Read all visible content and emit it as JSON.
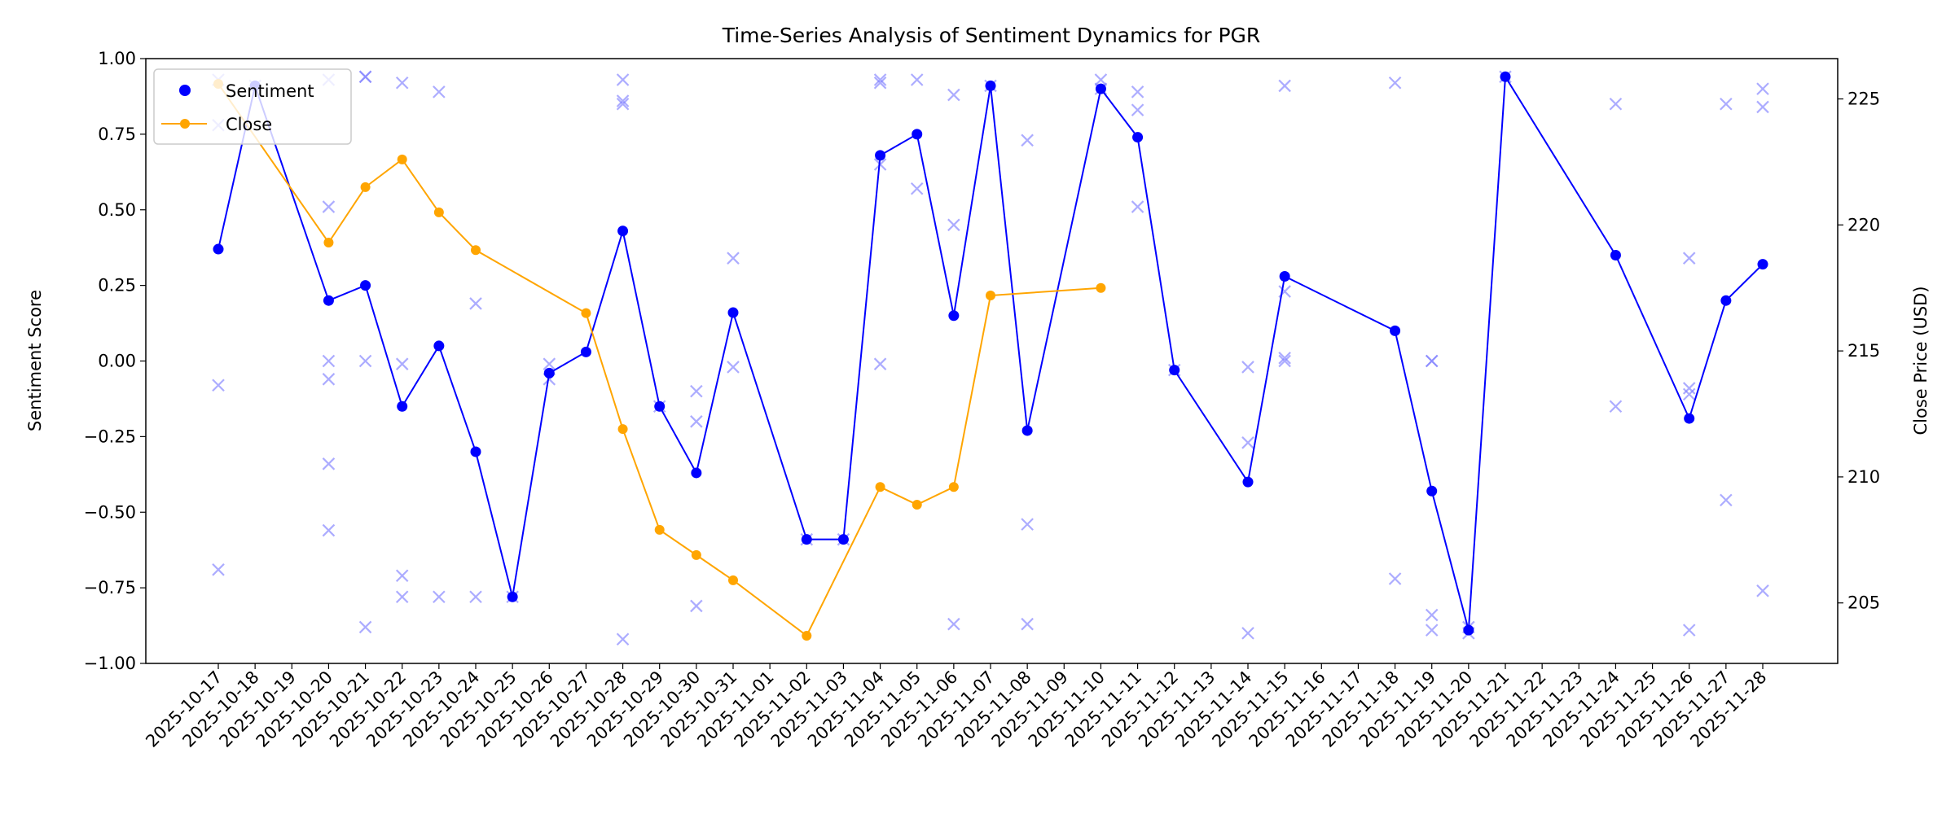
{
  "chart_data": {
    "type": "line",
    "title": "Time-Series Analysis of Sentiment Dynamics for PGR",
    "ylabel": "Sentiment Score",
    "y2label": "Close Price (USD)",
    "xlabel": "",
    "ylim": [
      -1.0,
      1.0
    ],
    "y2lim": [
      202.6,
      226.6
    ],
    "yticks": [
      "1.00",
      "0.75",
      "0.50",
      "0.25",
      "0.00",
      "−0.25",
      "−0.50",
      "−0.75",
      "−1.00"
    ],
    "y2ticks": [
      "205",
      "210",
      "215",
      "220",
      "225"
    ],
    "grid": false,
    "legend": {
      "position": "top-left",
      "entries": [
        "Sentiment",
        "Close"
      ]
    },
    "colors": {
      "sentiment": "#0000ff",
      "close": "#ffa500",
      "raw": "#8080ff"
    },
    "categories": [
      "2025-10-17",
      "2025-10-18",
      "2025-10-19",
      "2025-10-20",
      "2025-10-21",
      "2025-10-22",
      "2025-10-23",
      "2025-10-24",
      "2025-10-25",
      "2025-10-26",
      "2025-10-27",
      "2025-10-28",
      "2025-10-29",
      "2025-10-30",
      "2025-10-31",
      "2025-11-01",
      "2025-11-02",
      "2025-11-03",
      "2025-11-04",
      "2025-11-05",
      "2025-11-06",
      "2025-11-07",
      "2025-11-08",
      "2025-11-09",
      "2025-11-10",
      "2025-11-11",
      "2025-11-12",
      "2025-11-13",
      "2025-11-14",
      "2025-11-15",
      "2025-11-16",
      "2025-11-17",
      "2025-11-18",
      "2025-11-19",
      "2025-11-20",
      "2025-11-21",
      "2025-11-22",
      "2025-11-23",
      "2025-11-24",
      "2025-11-25",
      "2025-11-26",
      "2025-11-27",
      "2025-11-28"
    ],
    "series": [
      {
        "name": "Sentiment",
        "axis": "left",
        "points": [
          [
            "2025-10-17",
            0.37
          ],
          [
            "2025-10-18",
            0.91
          ],
          [
            "2025-10-20",
            0.2
          ],
          [
            "2025-10-21",
            0.25
          ],
          [
            "2025-10-22",
            -0.15
          ],
          [
            "2025-10-23",
            0.05
          ],
          [
            "2025-10-24",
            -0.3
          ],
          [
            "2025-10-25",
            -0.78
          ],
          [
            "2025-10-26",
            -0.04
          ],
          [
            "2025-10-27",
            0.03
          ],
          [
            "2025-10-28",
            0.43
          ],
          [
            "2025-10-29",
            -0.15
          ],
          [
            "2025-10-30",
            -0.37
          ],
          [
            "2025-10-31",
            0.16
          ],
          [
            "2025-11-02",
            -0.59
          ],
          [
            "2025-11-03",
            -0.59
          ],
          [
            "2025-11-04",
            0.68
          ],
          [
            "2025-11-05",
            0.75
          ],
          [
            "2025-11-06",
            0.15
          ],
          [
            "2025-11-07",
            0.91
          ],
          [
            "2025-11-08",
            -0.23
          ],
          [
            "2025-11-10",
            0.9
          ],
          [
            "2025-11-11",
            0.74
          ],
          [
            "2025-11-12",
            -0.03
          ],
          [
            "2025-11-14",
            -0.4
          ],
          [
            "2025-11-15",
            0.28
          ],
          [
            "2025-11-18",
            0.1
          ],
          [
            "2025-11-19",
            -0.43
          ],
          [
            "2025-11-20",
            -0.89
          ],
          [
            "2025-11-21",
            0.94
          ],
          [
            "2025-11-24",
            0.35
          ],
          [
            "2025-11-26",
            -0.19
          ],
          [
            "2025-11-27",
            0.2
          ],
          [
            "2025-11-28",
            0.32
          ]
        ]
      },
      {
        "name": "Close",
        "axis": "right",
        "points": [
          [
            "2025-10-17",
            225.6
          ],
          [
            "2025-10-20",
            219.3
          ],
          [
            "2025-10-21",
            221.5
          ],
          [
            "2025-10-22",
            222.6
          ],
          [
            "2025-10-23",
            220.5
          ],
          [
            "2025-10-24",
            219.0
          ],
          [
            "2025-10-27",
            216.5
          ],
          [
            "2025-10-28",
            211.9
          ],
          [
            "2025-10-29",
            207.9
          ],
          [
            "2025-10-30",
            206.9
          ],
          [
            "2025-10-31",
            205.9
          ],
          [
            "2025-11-02",
            203.7
          ],
          [
            "2025-11-04",
            209.6
          ],
          [
            "2025-11-05",
            208.9
          ],
          [
            "2025-11-06",
            209.6
          ],
          [
            "2025-11-07",
            217.2
          ],
          [
            "2025-11-10",
            217.5
          ]
        ]
      },
      {
        "axis": "left",
        "marker": "x",
        "points": [
          [
            "2025-10-17",
            0.93
          ],
          [
            "2025-10-17",
            0.78
          ],
          [
            "2025-10-17",
            -0.08
          ],
          [
            "2025-10-17",
            -0.69
          ],
          [
            "2025-10-18",
            0.91
          ],
          [
            "2025-10-20",
            0.93
          ],
          [
            "2025-10-20",
            0.51
          ],
          [
            "2025-10-20",
            0.0
          ],
          [
            "2025-10-20",
            -0.06
          ],
          [
            "2025-10-20",
            -0.34
          ],
          [
            "2025-10-20",
            -0.56
          ],
          [
            "2025-10-21",
            0.94
          ],
          [
            "2025-10-21",
            0.94
          ],
          [
            "2025-10-21",
            0.0
          ],
          [
            "2025-10-21",
            -0.88
          ],
          [
            "2025-10-22",
            0.92
          ],
          [
            "2025-10-22",
            -0.01
          ],
          [
            "2025-10-22",
            -0.71
          ],
          [
            "2025-10-22",
            -0.78
          ],
          [
            "2025-10-23",
            0.89
          ],
          [
            "2025-10-23",
            -0.78
          ],
          [
            "2025-10-24",
            0.19
          ],
          [
            "2025-10-24",
            -0.78
          ],
          [
            "2025-10-25",
            -0.78
          ],
          [
            "2025-10-26",
            -0.01
          ],
          [
            "2025-10-26",
            -0.06
          ],
          [
            "2025-10-28",
            0.93
          ],
          [
            "2025-10-28",
            0.86
          ],
          [
            "2025-10-28",
            0.85
          ],
          [
            "2025-10-28",
            -0.92
          ],
          [
            "2025-10-29",
            -0.15
          ],
          [
            "2025-10-30",
            -0.1
          ],
          [
            "2025-10-30",
            -0.2
          ],
          [
            "2025-10-30",
            -0.81
          ],
          [
            "2025-10-31",
            0.34
          ],
          [
            "2025-10-31",
            -0.02
          ],
          [
            "2025-11-02",
            -0.59
          ],
          [
            "2025-11-03",
            -0.59
          ],
          [
            "2025-11-04",
            0.93
          ],
          [
            "2025-11-04",
            0.92
          ],
          [
            "2025-11-04",
            0.65
          ],
          [
            "2025-11-04",
            -0.01
          ],
          [
            "2025-11-05",
            0.93
          ],
          [
            "2025-11-05",
            0.57
          ],
          [
            "2025-11-06",
            0.88
          ],
          [
            "2025-11-06",
            0.45
          ],
          [
            "2025-11-06",
            -0.87
          ],
          [
            "2025-11-07",
            0.91
          ],
          [
            "2025-11-08",
            0.73
          ],
          [
            "2025-11-08",
            -0.54
          ],
          [
            "2025-11-08",
            -0.87
          ],
          [
            "2025-11-10",
            0.93
          ],
          [
            "2025-11-10",
            0.9
          ],
          [
            "2025-11-11",
            0.89
          ],
          [
            "2025-11-11",
            0.83
          ],
          [
            "2025-11-11",
            0.51
          ],
          [
            "2025-11-12",
            -0.03
          ],
          [
            "2025-11-14",
            -0.02
          ],
          [
            "2025-11-14",
            -0.27
          ],
          [
            "2025-11-14",
            -0.9
          ],
          [
            "2025-11-15",
            0.91
          ],
          [
            "2025-11-15",
            0.23
          ],
          [
            "2025-11-15",
            0.01
          ],
          [
            "2025-11-15",
            0.0
          ],
          [
            "2025-11-18",
            0.92
          ],
          [
            "2025-11-18",
            -0.72
          ],
          [
            "2025-11-19",
            0.0
          ],
          [
            "2025-11-19",
            0.0
          ],
          [
            "2025-11-19",
            -0.84
          ],
          [
            "2025-11-19",
            -0.89
          ],
          [
            "2025-11-20",
            -0.88
          ],
          [
            "2025-11-20",
            -0.9
          ],
          [
            "2025-11-21",
            0.94
          ],
          [
            "2025-11-24",
            0.85
          ],
          [
            "2025-11-24",
            -0.15
          ],
          [
            "2025-11-26",
            0.34
          ],
          [
            "2025-11-26",
            -0.09
          ],
          [
            "2025-11-26",
            -0.11
          ],
          [
            "2025-11-26",
            -0.89
          ],
          [
            "2025-11-27",
            0.85
          ],
          [
            "2025-11-27",
            -0.46
          ],
          [
            "2025-11-28",
            0.9
          ],
          [
            "2025-11-28",
            0.84
          ],
          [
            "2025-11-28",
            -0.76
          ]
        ]
      }
    ]
  }
}
